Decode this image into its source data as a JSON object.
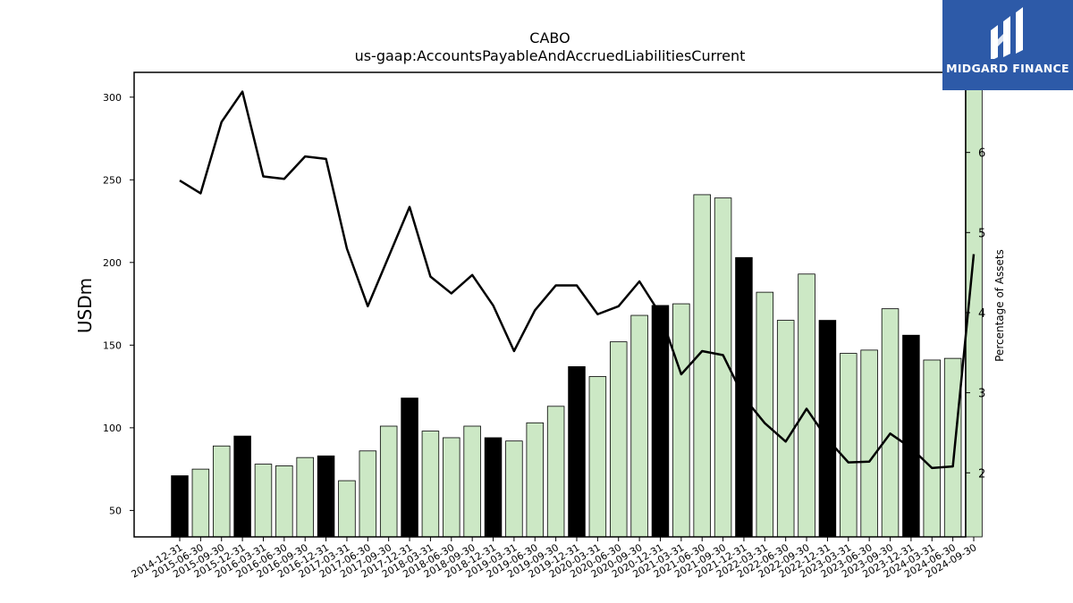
{
  "logo": {
    "text": "MIDGARD FINANCE",
    "icon": "midgard-bars-logo",
    "bg_color": "#2d5aa8"
  },
  "chart_data": {
    "type": "bar",
    "title": "CABO",
    "subtitle": "us-gaap:AccountsPayableAndAccruedLiabilitiesCurrent",
    "ylabel": "USDm",
    "ylabel_right": "Percentage of Assets",
    "ylim": [
      34,
      315
    ],
    "ylim_right": [
      1.2,
      7.0
    ],
    "yticks": [
      50,
      100,
      150,
      200,
      250,
      300
    ],
    "yticks_right": [
      2,
      3,
      4,
      5,
      6
    ],
    "bar_color": "#cce8c5",
    "highlight_color": "#000000",
    "line_color": "#000000",
    "grid": false,
    "categories": [
      "2014-12-31",
      "2015-06-30",
      "2015-09-30",
      "2015-12-31",
      "2016-03-31",
      "2016-06-30",
      "2016-09-30",
      "2016-12-31",
      "2017-03-31",
      "2017-06-30",
      "2017-09-30",
      "2017-12-31",
      "2018-03-31",
      "2018-06-30",
      "2018-09-30",
      "2018-12-31",
      "2019-03-31",
      "2019-06-30",
      "2019-09-30",
      "2019-12-31",
      "2020-03-31",
      "2020-06-30",
      "2020-09-30",
      "2020-12-31",
      "2021-03-31",
      "2021-06-30",
      "2021-09-30",
      "2021-12-31",
      "2022-03-31",
      "2022-06-30",
      "2022-09-30",
      "2022-12-31",
      "2023-03-31",
      "2023-06-30",
      "2023-09-30",
      "2023-12-31",
      "2024-03-31",
      "2024-06-30",
      "2024-09-30"
    ],
    "series": [
      {
        "kind": "bar",
        "values": [
          71,
          75,
          89,
          95,
          78,
          77,
          82,
          83,
          68,
          86,
          101,
          118,
          98,
          94,
          101,
          94,
          92,
          103,
          113,
          137,
          131,
          152,
          168,
          174,
          175,
          241,
          239,
          203,
          182,
          165,
          193,
          165,
          145,
          147,
          172,
          156,
          141,
          142,
          315
        ],
        "highlight": [
          true,
          false,
          false,
          true,
          false,
          false,
          false,
          true,
          false,
          false,
          false,
          true,
          false,
          false,
          false,
          true,
          false,
          false,
          false,
          true,
          false,
          false,
          false,
          true,
          false,
          false,
          false,
          true,
          false,
          false,
          false,
          true,
          false,
          false,
          false,
          true,
          false,
          false,
          false
        ]
      },
      {
        "kind": "line",
        "axis": "right",
        "values": [
          5.65,
          5.49,
          6.38,
          6.76,
          5.7,
          5.67,
          5.95,
          5.92,
          4.8,
          4.08,
          4.7,
          5.32,
          4.45,
          4.24,
          4.47,
          4.09,
          3.52,
          4.03,
          4.34,
          4.34,
          3.98,
          4.08,
          4.39,
          3.98,
          3.23,
          3.52,
          3.47,
          2.94,
          2.62,
          2.39,
          2.8,
          2.42,
          2.13,
          2.14,
          2.49,
          2.31,
          2.06,
          2.08,
          4.73
        ]
      }
    ]
  }
}
